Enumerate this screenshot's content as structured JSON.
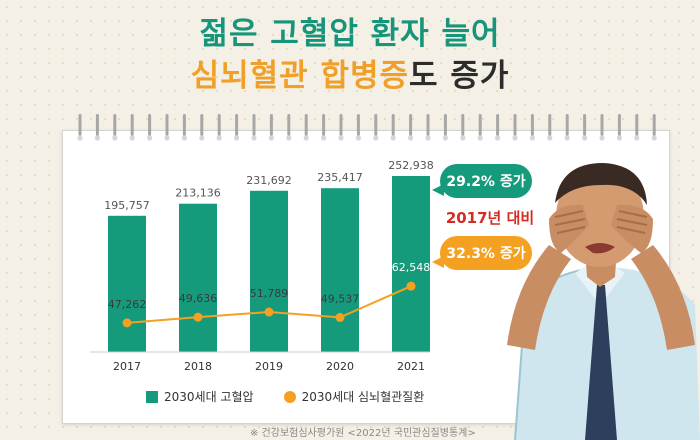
{
  "title": {
    "line1": "젊은 고혈압 환자 늘어",
    "line2_highlight_a": "심뇌혈관",
    "line2_space": " ",
    "line2_highlight_b": "합병증",
    "line2_rest": "도 증가"
  },
  "annotations": {
    "bar_increase": "29.2% 증가",
    "compare_base": "2017년 대비",
    "line_increase": "32.3% 증가"
  },
  "legend": {
    "bar": "2030세대 고혈압",
    "line": "2030세대 심뇌혈관질환"
  },
  "source": "※ 건강보험심사평가원 <2022년 국민관심질병통계>",
  "colors": {
    "bar": "#169a7c",
    "line": "#f4a020",
    "title_green": "#16957a",
    "highlight_orange": "#f0a028",
    "compare_red": "#d22d22"
  },
  "chart_data": {
    "type": "bar",
    "categories": [
      "2017",
      "2018",
      "2019",
      "2020",
      "2021"
    ],
    "series": [
      {
        "name": "2030세대 고혈압",
        "type": "bar",
        "values": [
          195757,
          213136,
          231692,
          235417,
          252938
        ],
        "labels": [
          "195,757",
          "213,136",
          "231,692",
          "235,417",
          "252,938"
        ]
      },
      {
        "name": "2030세대 심뇌혈관질환",
        "type": "line",
        "values": [
          47262,
          49636,
          51789,
          49537,
          62548
        ],
        "labels": [
          "47,262",
          "49,636",
          "51,789",
          "49,537",
          "62,548"
        ]
      }
    ],
    "grid": false,
    "legend_position": "bottom"
  }
}
